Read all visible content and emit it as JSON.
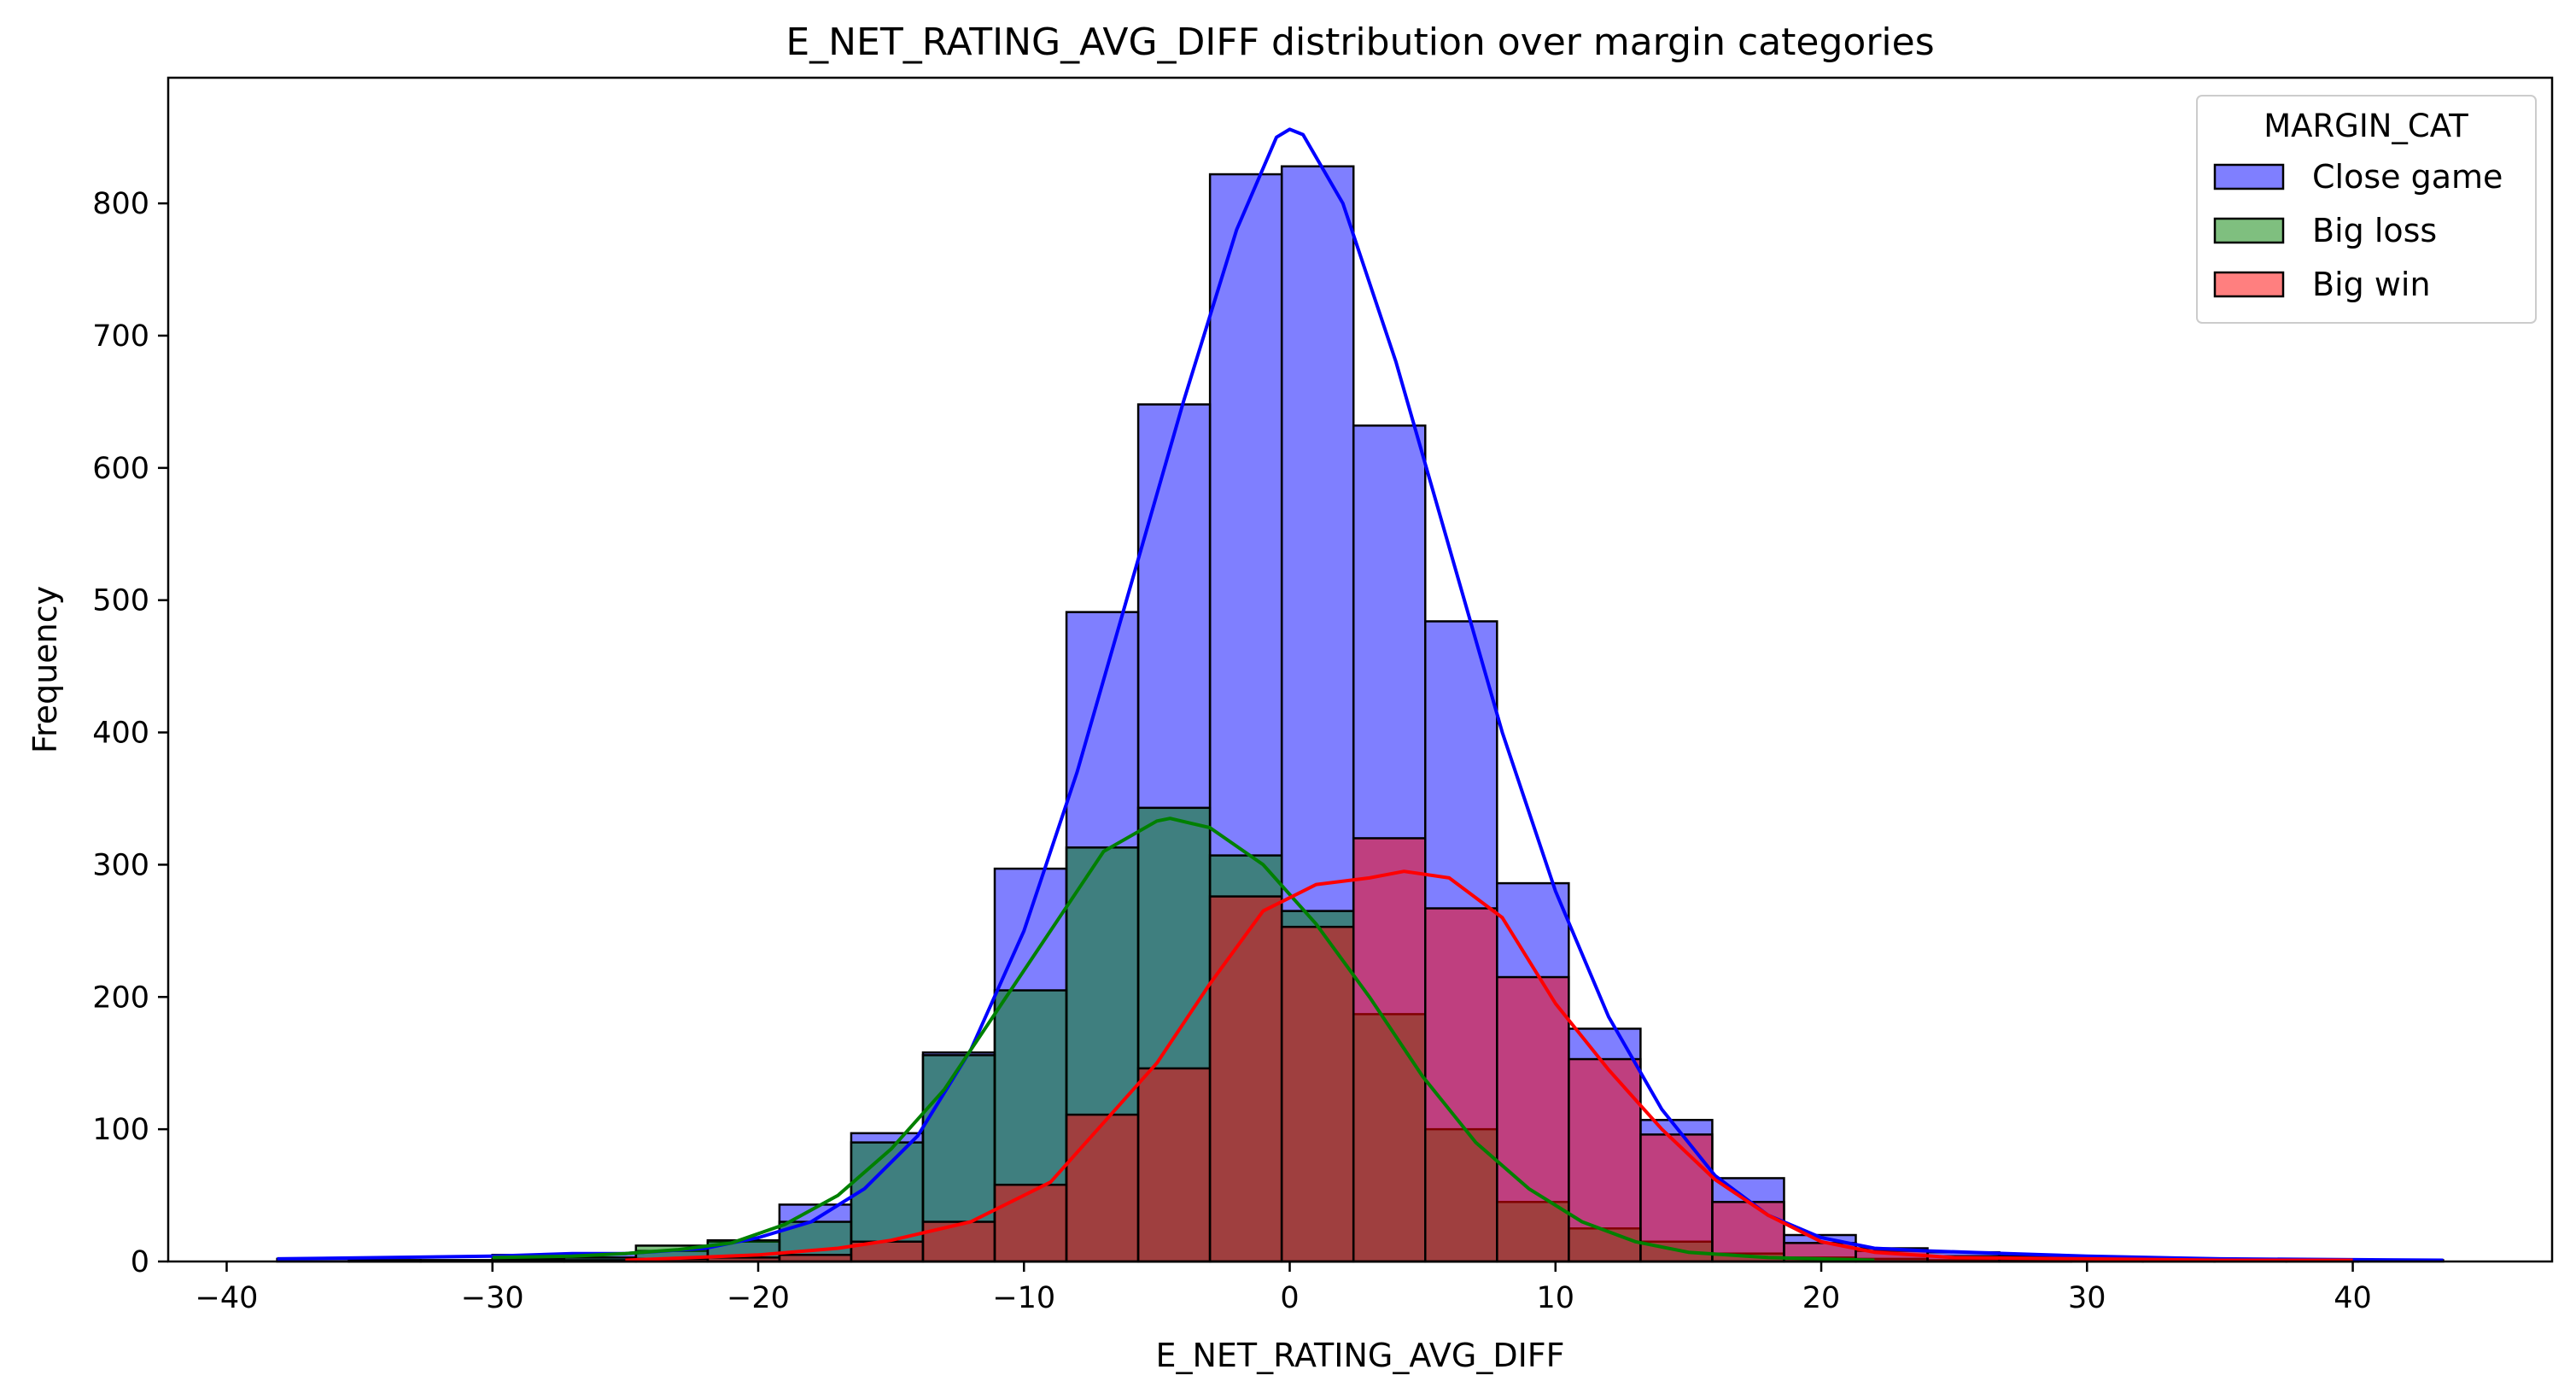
{
  "chart_data": {
    "type": "histogram",
    "title": "E_NET_RATING_AVG_DIFF distribution over margin categories",
    "xlabel": "E_NET_RATING_AVG_DIFF",
    "ylabel": "Frequency",
    "xlim": [
      -42.2,
      47.5
    ],
    "ylim": [
      0,
      895
    ],
    "x_ticks": [
      -40,
      -30,
      -20,
      -10,
      0,
      10,
      20,
      30,
      40
    ],
    "y_ticks": [
      0,
      100,
      200,
      300,
      400,
      500,
      600,
      700,
      800
    ],
    "grid": false,
    "legend": {
      "title": "MARGIN_CAT",
      "placement": "top-right",
      "entries": [
        {
          "label": "Close game",
          "color": "#0000ff"
        },
        {
          "label": "Big loss",
          "color": "#008000"
        },
        {
          "label": "Big win",
          "color": "#ff0000"
        }
      ]
    },
    "bin_edges": [
      -38.1,
      -35.4,
      -32.7,
      -30.0,
      -27.3,
      -24.6,
      -21.9,
      -19.2,
      -16.5,
      -13.8,
      -11.1,
      -8.4,
      -5.7,
      -3.0,
      -0.3,
      2.4,
      5.1,
      7.8,
      10.5,
      13.2,
      15.9,
      18.6,
      21.3,
      24.0,
      26.7,
      29.4,
      32.1,
      34.8,
      37.5,
      40.2,
      43.4
    ],
    "series": [
      {
        "name": "Close game",
        "color": "#0000ff",
        "counts": [
          2,
          1,
          1,
          5,
          6,
          8,
          15,
          43,
          97,
          158,
          297,
          491,
          648,
          822,
          828,
          632,
          484,
          286,
          176,
          107,
          63,
          20,
          8,
          7,
          4,
          2,
          1,
          1,
          1,
          1
        ],
        "kde": [
          [
            -38.1,
            2
          ],
          [
            -30,
            4
          ],
          [
            -27,
            6
          ],
          [
            -25,
            6
          ],
          [
            -22,
            10
          ],
          [
            -20,
            18
          ],
          [
            -18,
            30
          ],
          [
            -16,
            55
          ],
          [
            -14,
            95
          ],
          [
            -12,
            160
          ],
          [
            -10,
            250
          ],
          [
            -8,
            370
          ],
          [
            -6,
            510
          ],
          [
            -4,
            650
          ],
          [
            -2,
            780
          ],
          [
            -0.5,
            850
          ],
          [
            0,
            856
          ],
          [
            0.5,
            852
          ],
          [
            2,
            800
          ],
          [
            4,
            680
          ],
          [
            6,
            540
          ],
          [
            8,
            400
          ],
          [
            10,
            280
          ],
          [
            12,
            185
          ],
          [
            14,
            115
          ],
          [
            16,
            65
          ],
          [
            18,
            35
          ],
          [
            20,
            18
          ],
          [
            22,
            10
          ],
          [
            24,
            8
          ],
          [
            27,
            6
          ],
          [
            30,
            4
          ],
          [
            35,
            2
          ],
          [
            43.4,
            1
          ]
        ]
      },
      {
        "name": "Big loss",
        "color": "#008000",
        "counts": [
          0,
          1,
          1,
          2,
          3,
          12,
          16,
          30,
          90,
          156,
          205,
          313,
          343,
          307,
          265,
          187,
          100,
          45,
          25,
          15,
          6,
          3,
          2,
          1,
          1,
          0,
          0,
          0,
          0,
          0
        ],
        "kde": [
          [
            -30,
            3
          ],
          [
            -27,
            4
          ],
          [
            -25,
            6
          ],
          [
            -23,
            9
          ],
          [
            -21,
            14
          ],
          [
            -19,
            28
          ],
          [
            -17,
            50
          ],
          [
            -15,
            85
          ],
          [
            -13,
            130
          ],
          [
            -11,
            190
          ],
          [
            -9,
            250
          ],
          [
            -7,
            310
          ],
          [
            -5,
            333
          ],
          [
            -4.5,
            335
          ],
          [
            -3,
            328
          ],
          [
            -1,
            300
          ],
          [
            1,
            255
          ],
          [
            3,
            200
          ],
          [
            5,
            140
          ],
          [
            7,
            90
          ],
          [
            9,
            55
          ],
          [
            11,
            30
          ],
          [
            13,
            15
          ],
          [
            15,
            7
          ],
          [
            18,
            3
          ],
          [
            22,
            1
          ]
        ]
      },
      {
        "name": "Big win",
        "color": "#ff0000",
        "counts": [
          0,
          0,
          0,
          1,
          1,
          2,
          3,
          5,
          15,
          30,
          58,
          111,
          146,
          276,
          253,
          320,
          267,
          215,
          153,
          96,
          45,
          14,
          10,
          4,
          2,
          1,
          1,
          1,
          1,
          0
        ],
        "kde": [
          [
            -25,
            1
          ],
          [
            -20,
            5
          ],
          [
            -17,
            10
          ],
          [
            -15,
            16
          ],
          [
            -12,
            30
          ],
          [
            -9,
            60
          ],
          [
            -7,
            105
          ],
          [
            -5,
            150
          ],
          [
            -3,
            210
          ],
          [
            -1,
            265
          ],
          [
            1,
            285
          ],
          [
            3,
            290
          ],
          [
            4.3,
            295
          ],
          [
            6,
            290
          ],
          [
            8,
            260
          ],
          [
            10,
            195
          ],
          [
            12,
            145
          ],
          [
            14,
            100
          ],
          [
            16,
            62
          ],
          [
            18,
            35
          ],
          [
            20,
            15
          ],
          [
            22,
            7
          ],
          [
            25,
            3
          ],
          [
            30,
            2
          ],
          [
            35,
            1
          ],
          [
            40,
            1
          ]
        ]
      }
    ]
  }
}
